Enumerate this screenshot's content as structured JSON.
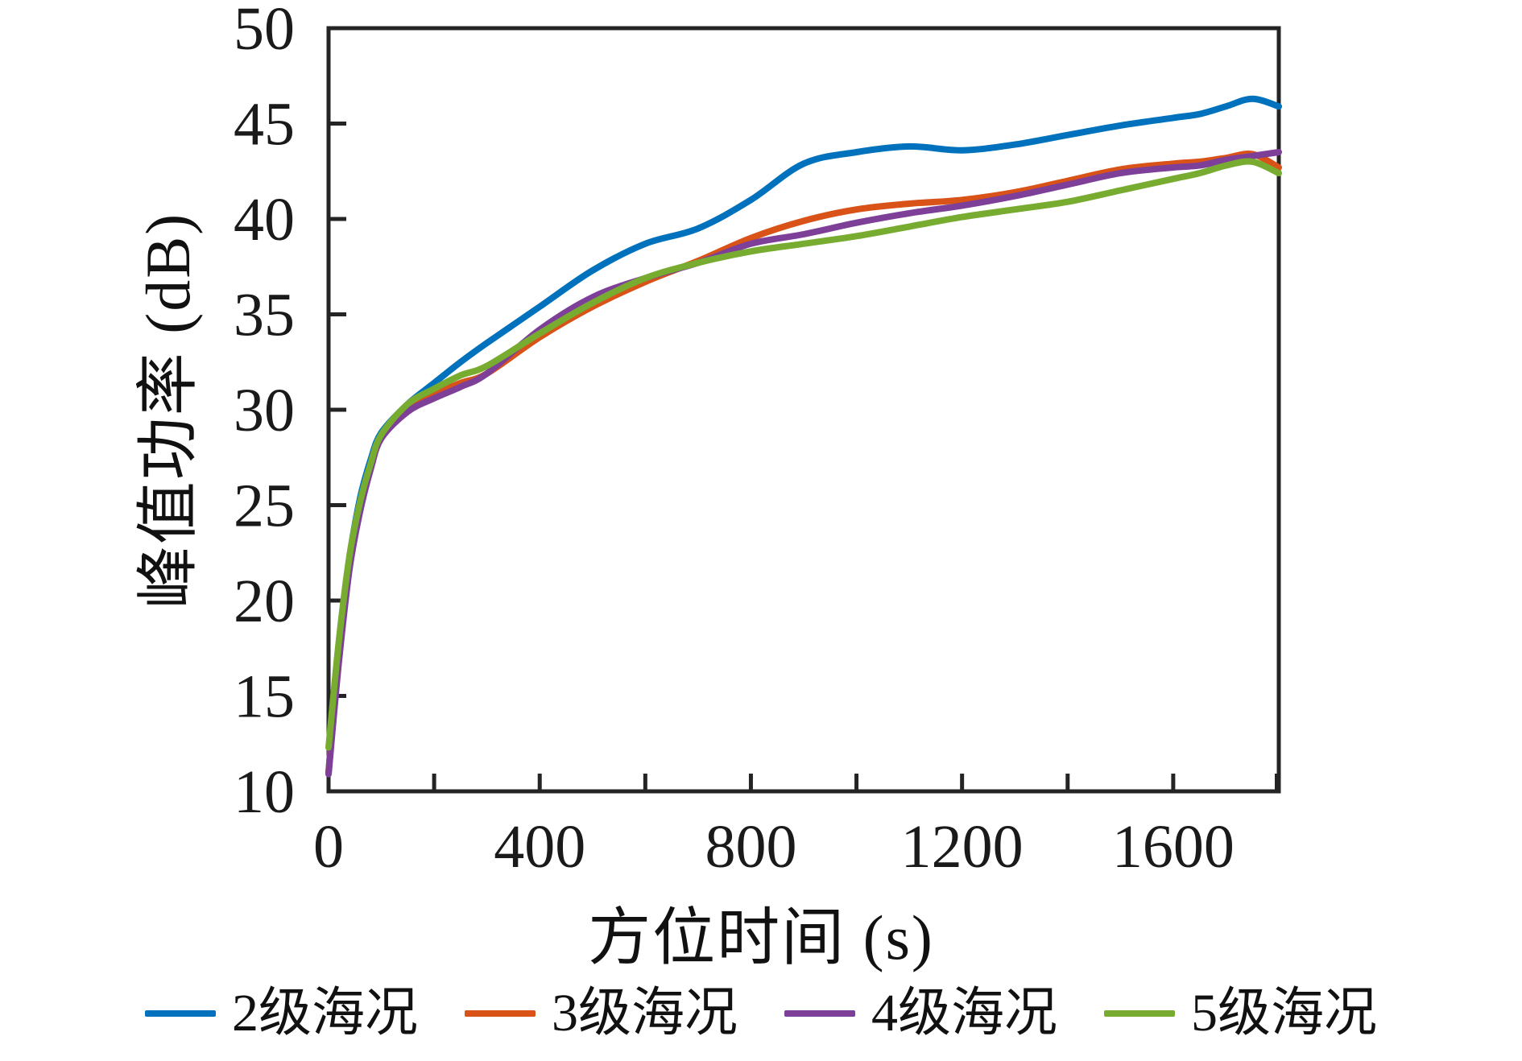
{
  "figure": {
    "background": "#ffffff",
    "axis_color": "#242424"
  },
  "axes": {
    "x": {
      "label": "方位时间 (s)",
      "min": 0,
      "max": 1800,
      "major_ticks": [
        0,
        400,
        800,
        1200,
        1600
      ],
      "minor_ticks": [
        200,
        600,
        1000,
        1400,
        1800
      ],
      "tick_labels": [
        "0",
        "400",
        "800",
        "1200",
        "1600"
      ]
    },
    "y": {
      "label": "峰值功率 (dB)",
      "min": 10,
      "max": 50,
      "ticks": [
        10,
        15,
        20,
        25,
        30,
        35,
        40,
        45,
        50
      ],
      "tick_labels": [
        "10",
        "15",
        "20",
        "25",
        "30",
        "35",
        "40",
        "45",
        "50"
      ]
    }
  },
  "chart_data": {
    "type": "line",
    "title": "",
    "xlabel": "方位时间 (s)",
    "ylabel": "峰值功率 (dB)",
    "xlim": [
      0,
      1800
    ],
    "ylim": [
      10,
      50
    ],
    "grid": false,
    "legend_position": "bottom",
    "x": [
      0,
      20,
      40,
      60,
      80,
      100,
      150,
      200,
      250,
      300,
      400,
      500,
      600,
      700,
      800,
      900,
      1000,
      1100,
      1200,
      1300,
      1400,
      1500,
      1600,
      1650,
      1700,
      1750,
      1800
    ],
    "series": [
      {
        "name": "2级海况",
        "color": "#0072BD",
        "values": [
          11.0,
          17.5,
          22.3,
          25.4,
          27.4,
          28.8,
          30.3,
          31.4,
          32.5,
          33.5,
          35.4,
          37.3,
          38.7,
          39.5,
          41.0,
          42.9,
          43.5,
          43.8,
          43.6,
          43.9,
          44.4,
          44.9,
          45.3,
          45.5,
          45.9,
          46.3,
          45.9
        ]
      },
      {
        "name": "3级海况",
        "color": "#D95319",
        "values": [
          11.0,
          17.2,
          22.0,
          25.0,
          27.1,
          28.6,
          30.0,
          30.8,
          31.4,
          31.9,
          33.8,
          35.4,
          36.7,
          37.8,
          39.0,
          39.9,
          40.5,
          40.8,
          41.0,
          41.4,
          42.0,
          42.6,
          42.9,
          43.0,
          43.2,
          43.4,
          42.7
        ]
      },
      {
        "name": "4级海况",
        "color": "#7E3F98",
        "values": [
          10.9,
          16.9,
          21.7,
          24.7,
          26.9,
          28.5,
          29.9,
          30.6,
          31.2,
          31.9,
          34.2,
          35.9,
          36.9,
          37.7,
          38.7,
          39.2,
          39.8,
          40.3,
          40.7,
          41.2,
          41.8,
          42.4,
          42.7,
          42.8,
          43.1,
          43.3,
          43.5
        ]
      },
      {
        "name": "5级海况",
        "color": "#77AC30",
        "values": [
          12.3,
          18.0,
          22.4,
          25.2,
          27.2,
          28.7,
          30.3,
          31.1,
          31.8,
          32.3,
          34.0,
          35.6,
          36.9,
          37.7,
          38.3,
          38.7,
          39.1,
          39.6,
          40.1,
          40.5,
          40.9,
          41.5,
          42.1,
          42.4,
          42.8,
          43.0,
          42.4
        ]
      }
    ]
  },
  "legend": {
    "items": [
      {
        "label": "2级海况",
        "color": "#0072BD"
      },
      {
        "label": "3级海况",
        "color": "#D95319"
      },
      {
        "label": "4级海况",
        "color": "#7E3F98"
      },
      {
        "label": "5级海况",
        "color": "#77AC30"
      }
    ]
  }
}
